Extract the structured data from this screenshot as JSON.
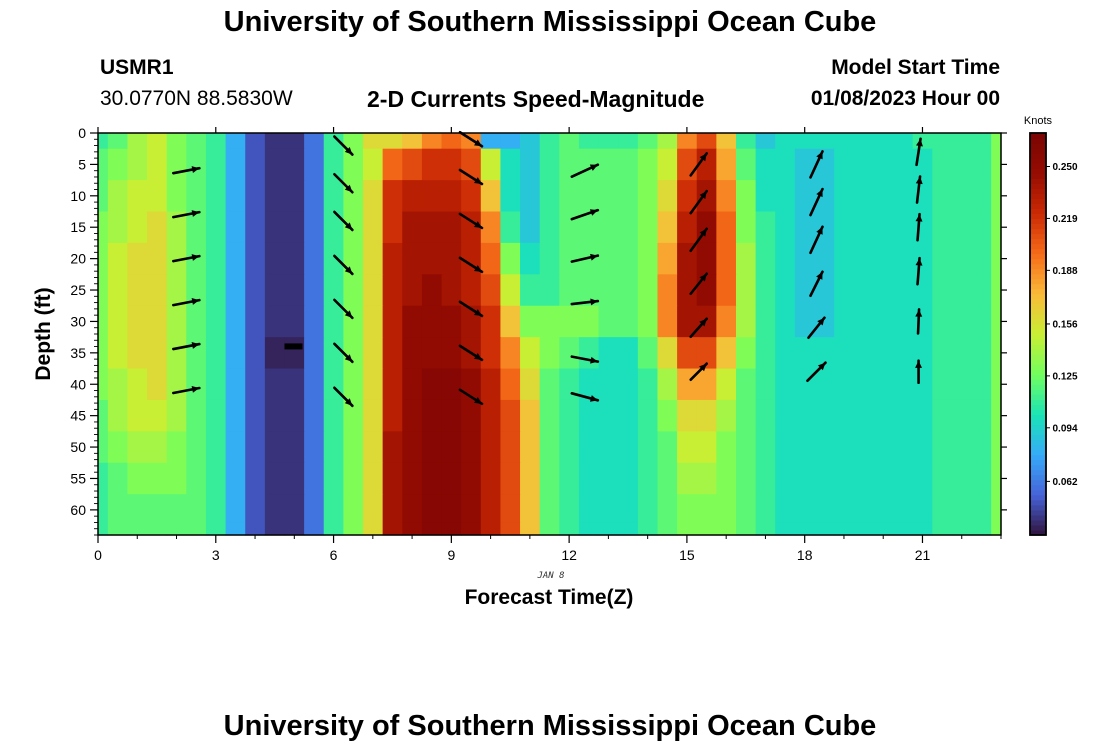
{
  "header": {
    "title": "University of Southern Mississippi Ocean Cube",
    "station_id": "USMR1",
    "coordinates": "30.0770N  88.5830W",
    "subtitle": "2-D Currents Speed-Magnitude",
    "model_start_label": "Model Start Time",
    "model_start_value": "01/08/2023 Hour 00",
    "footer_title": "University of Southern Mississippi Ocean Cube"
  },
  "chart_data": {
    "type": "heatmap",
    "title": "2-D Currents Speed-Magnitude",
    "xlabel": "Forecast Time(Z)",
    "ylabel": "Depth (ft)",
    "date_label": "JAN 8",
    "xlim": [
      0,
      23
    ],
    "ylim": [
      0,
      64
    ],
    "y_inverted": true,
    "x_ticks": [
      0,
      3,
      6,
      9,
      12,
      15,
      18,
      21
    ],
    "y_ticks": [
      0,
      5,
      10,
      15,
      20,
      25,
      30,
      35,
      40,
      45,
      50,
      55,
      60
    ],
    "colorbar": {
      "title": "Knots",
      "range": [
        0.03,
        0.27
      ],
      "ticks": [
        "0.250",
        "0.219",
        "0.188",
        "0.156",
        "0.125",
        "0.094",
        "0.062"
      ],
      "tick_values": [
        0.25,
        0.219,
        0.188,
        0.156,
        0.125,
        0.094,
        0.062
      ]
    },
    "hours": [
      0,
      0.5,
      1,
      1.5,
      2,
      2.5,
      3,
      3.5,
      4,
      4.5,
      5,
      5.5,
      6,
      6.5,
      7,
      7.5,
      8,
      8.5,
      9,
      9.5,
      10,
      10.5,
      11,
      11.5,
      12,
      12.5,
      13,
      13.5,
      14,
      14.5,
      15,
      15.5,
      16,
      16.5,
      17,
      17.5,
      18,
      18.5,
      19,
      19.5,
      20,
      20.5,
      21,
      21.5,
      22,
      22.5,
      23
    ],
    "depths_ft": [
      0,
      5,
      10,
      15,
      20,
      25,
      30,
      35,
      40,
      45,
      50,
      55,
      60,
      64
    ],
    "speed_knots": [
      [
        0.11,
        0.12,
        0.14,
        0.15,
        0.13,
        0.12,
        0.11,
        0.08,
        0.05,
        0.04,
        0.04,
        0.06,
        0.11,
        0.13,
        0.16,
        0.16,
        0.17,
        0.19,
        0.2,
        0.19,
        0.08,
        0.08,
        0.09,
        0.11,
        0.12,
        0.11,
        0.11,
        0.11,
        0.12,
        0.14,
        0.19,
        0.21,
        0.17,
        0.11,
        0.09,
        0.1,
        0.1,
        0.1,
        0.1,
        0.1,
        0.1,
        0.1,
        0.11,
        0.11,
        0.11,
        0.11,
        0.13
      ],
      [
        0.12,
        0.13,
        0.14,
        0.15,
        0.13,
        0.12,
        0.11,
        0.08,
        0.05,
        0.04,
        0.04,
        0.06,
        0.11,
        0.13,
        0.15,
        0.2,
        0.21,
        0.22,
        0.22,
        0.21,
        0.15,
        0.1,
        0.09,
        0.11,
        0.12,
        0.12,
        0.12,
        0.12,
        0.13,
        0.15,
        0.21,
        0.23,
        0.18,
        0.12,
        0.1,
        0.1,
        0.09,
        0.09,
        0.1,
        0.1,
        0.1,
        0.1,
        0.1,
        0.11,
        0.11,
        0.11,
        0.13
      ],
      [
        0.12,
        0.14,
        0.15,
        0.15,
        0.13,
        0.12,
        0.11,
        0.08,
        0.05,
        0.04,
        0.04,
        0.06,
        0.11,
        0.13,
        0.16,
        0.22,
        0.23,
        0.23,
        0.23,
        0.22,
        0.17,
        0.1,
        0.09,
        0.11,
        0.12,
        0.12,
        0.12,
        0.12,
        0.13,
        0.16,
        0.22,
        0.24,
        0.19,
        0.13,
        0.1,
        0.1,
        0.09,
        0.09,
        0.1,
        0.1,
        0.1,
        0.1,
        0.1,
        0.11,
        0.11,
        0.11,
        0.13
      ],
      [
        0.13,
        0.14,
        0.15,
        0.16,
        0.14,
        0.12,
        0.11,
        0.08,
        0.05,
        0.04,
        0.04,
        0.06,
        0.11,
        0.13,
        0.16,
        0.22,
        0.24,
        0.24,
        0.24,
        0.23,
        0.19,
        0.11,
        0.09,
        0.11,
        0.12,
        0.12,
        0.12,
        0.12,
        0.13,
        0.17,
        0.23,
        0.25,
        0.2,
        0.13,
        0.11,
        0.1,
        0.09,
        0.09,
        0.1,
        0.1,
        0.1,
        0.1,
        0.1,
        0.11,
        0.11,
        0.11,
        0.13
      ],
      [
        0.13,
        0.15,
        0.16,
        0.16,
        0.14,
        0.12,
        0.11,
        0.08,
        0.05,
        0.04,
        0.04,
        0.06,
        0.11,
        0.13,
        0.16,
        0.23,
        0.24,
        0.24,
        0.24,
        0.23,
        0.2,
        0.13,
        0.1,
        0.11,
        0.12,
        0.12,
        0.12,
        0.12,
        0.13,
        0.18,
        0.24,
        0.25,
        0.2,
        0.14,
        0.11,
        0.1,
        0.09,
        0.09,
        0.1,
        0.1,
        0.1,
        0.1,
        0.1,
        0.11,
        0.11,
        0.11,
        0.13
      ],
      [
        0.13,
        0.15,
        0.16,
        0.16,
        0.14,
        0.12,
        0.11,
        0.08,
        0.05,
        0.04,
        0.04,
        0.06,
        0.11,
        0.13,
        0.16,
        0.23,
        0.24,
        0.25,
        0.24,
        0.23,
        0.21,
        0.15,
        0.11,
        0.11,
        0.12,
        0.12,
        0.12,
        0.12,
        0.13,
        0.19,
        0.24,
        0.25,
        0.2,
        0.14,
        0.11,
        0.1,
        0.09,
        0.09,
        0.1,
        0.1,
        0.1,
        0.1,
        0.1,
        0.11,
        0.11,
        0.11,
        0.13
      ],
      [
        0.13,
        0.15,
        0.16,
        0.16,
        0.14,
        0.12,
        0.11,
        0.08,
        0.05,
        0.04,
        0.04,
        0.06,
        0.11,
        0.13,
        0.16,
        0.23,
        0.25,
        0.25,
        0.25,
        0.24,
        0.22,
        0.17,
        0.13,
        0.13,
        0.13,
        0.13,
        0.12,
        0.12,
        0.13,
        0.19,
        0.24,
        0.24,
        0.19,
        0.14,
        0.11,
        0.1,
        0.09,
        0.09,
        0.1,
        0.1,
        0.1,
        0.1,
        0.1,
        0.11,
        0.11,
        0.11,
        0.13
      ],
      [
        0.13,
        0.15,
        0.16,
        0.16,
        0.14,
        0.12,
        0.11,
        0.08,
        0.05,
        0.035,
        0.035,
        0.06,
        0.11,
        0.13,
        0.16,
        0.23,
        0.25,
        0.25,
        0.25,
        0.24,
        0.22,
        0.19,
        0.15,
        0.13,
        0.12,
        0.11,
        0.1,
        0.1,
        0.12,
        0.16,
        0.21,
        0.21,
        0.17,
        0.13,
        0.11,
        0.1,
        0.1,
        0.1,
        0.1,
        0.1,
        0.1,
        0.1,
        0.1,
        0.11,
        0.11,
        0.11,
        0.13
      ],
      [
        0.13,
        0.14,
        0.15,
        0.16,
        0.14,
        0.12,
        0.11,
        0.08,
        0.05,
        0.04,
        0.04,
        0.06,
        0.11,
        0.13,
        0.16,
        0.23,
        0.25,
        0.26,
        0.26,
        0.25,
        0.23,
        0.2,
        0.16,
        0.12,
        0.11,
        0.1,
        0.1,
        0.1,
        0.11,
        0.14,
        0.18,
        0.18,
        0.15,
        0.12,
        0.11,
        0.1,
        0.1,
        0.1,
        0.1,
        0.1,
        0.1,
        0.1,
        0.1,
        0.11,
        0.11,
        0.11,
        0.13
      ],
      [
        0.12,
        0.14,
        0.15,
        0.15,
        0.14,
        0.12,
        0.11,
        0.08,
        0.05,
        0.04,
        0.04,
        0.06,
        0.11,
        0.13,
        0.16,
        0.23,
        0.25,
        0.26,
        0.26,
        0.25,
        0.23,
        0.21,
        0.17,
        0.12,
        0.11,
        0.1,
        0.1,
        0.1,
        0.11,
        0.13,
        0.16,
        0.16,
        0.14,
        0.12,
        0.11,
        0.1,
        0.1,
        0.1,
        0.1,
        0.1,
        0.1,
        0.1,
        0.1,
        0.11,
        0.11,
        0.11,
        0.13
      ],
      [
        0.12,
        0.13,
        0.14,
        0.14,
        0.13,
        0.12,
        0.11,
        0.08,
        0.05,
        0.04,
        0.04,
        0.06,
        0.11,
        0.13,
        0.16,
        0.24,
        0.25,
        0.26,
        0.26,
        0.25,
        0.23,
        0.21,
        0.17,
        0.12,
        0.11,
        0.1,
        0.1,
        0.1,
        0.11,
        0.12,
        0.15,
        0.15,
        0.13,
        0.12,
        0.11,
        0.1,
        0.1,
        0.1,
        0.1,
        0.1,
        0.1,
        0.1,
        0.1,
        0.11,
        0.11,
        0.11,
        0.13
      ],
      [
        0.11,
        0.12,
        0.13,
        0.13,
        0.13,
        0.12,
        0.11,
        0.08,
        0.05,
        0.04,
        0.04,
        0.06,
        0.11,
        0.13,
        0.16,
        0.24,
        0.25,
        0.26,
        0.26,
        0.25,
        0.23,
        0.21,
        0.17,
        0.12,
        0.11,
        0.1,
        0.1,
        0.1,
        0.11,
        0.12,
        0.14,
        0.14,
        0.13,
        0.12,
        0.11,
        0.1,
        0.1,
        0.1,
        0.1,
        0.1,
        0.1,
        0.1,
        0.1,
        0.11,
        0.11,
        0.11,
        0.13
      ],
      [
        0.11,
        0.12,
        0.12,
        0.12,
        0.12,
        0.12,
        0.11,
        0.08,
        0.05,
        0.04,
        0.04,
        0.06,
        0.11,
        0.13,
        0.16,
        0.24,
        0.25,
        0.26,
        0.26,
        0.25,
        0.23,
        0.21,
        0.17,
        0.12,
        0.11,
        0.1,
        0.1,
        0.1,
        0.11,
        0.12,
        0.13,
        0.13,
        0.13,
        0.12,
        0.11,
        0.1,
        0.1,
        0.1,
        0.1,
        0.1,
        0.1,
        0.1,
        0.1,
        0.11,
        0.11,
        0.11,
        0.13
      ],
      [
        0.11,
        0.12,
        0.12,
        0.12,
        0.12,
        0.12,
        0.11,
        0.08,
        0.05,
        0.04,
        0.04,
        0.06,
        0.11,
        0.13,
        0.16,
        0.24,
        0.25,
        0.26,
        0.26,
        0.25,
        0.23,
        0.21,
        0.17,
        0.12,
        0.11,
        0.1,
        0.1,
        0.1,
        0.11,
        0.12,
        0.13,
        0.13,
        0.13,
        0.12,
        0.11,
        0.1,
        0.1,
        0.1,
        0.1,
        0.1,
        0.1,
        0.1,
        0.1,
        0.11,
        0.11,
        0.11,
        0.13
      ]
    ],
    "current_vectors": [
      {
        "hour": 2.25,
        "depths": [
          6,
          13,
          20,
          27,
          34,
          41
        ],
        "dx": [
          26,
          26,
          26,
          26,
          26,
          26
        ],
        "dy": [
          -5,
          -5,
          -5,
          -5,
          -5,
          -5
        ]
      },
      {
        "hour": 6.25,
        "depths": [
          2,
          8,
          14,
          21,
          28,
          35,
          42
        ],
        "dx": [
          18,
          18,
          18,
          18,
          18,
          18,
          18
        ],
        "dy": [
          18,
          18,
          18,
          18,
          18,
          18,
          18
        ]
      },
      {
        "hour": 9.5,
        "depths": [
          1,
          7,
          14,
          21,
          28,
          35,
          42
        ],
        "dx": [
          22,
          22,
          22,
          22,
          22,
          22,
          22
        ],
        "dy": [
          14,
          14,
          14,
          14,
          14,
          14,
          14
        ]
      },
      {
        "hour": 12.4,
        "depths": [
          6,
          13,
          20,
          27,
          36,
          42
        ],
        "dx": [
          26,
          26,
          26,
          26,
          26,
          26
        ],
        "dy": [
          -12,
          -9,
          -6,
          -3,
          5,
          7
        ]
      },
      {
        "hour": 15.3,
        "depths": [
          5,
          11,
          17,
          24,
          31,
          38
        ],
        "dx": [
          16,
          16,
          16,
          16,
          16,
          16
        ],
        "dy": [
          -22,
          -22,
          -22,
          -20,
          -18,
          -16
        ]
      },
      {
        "hour": 18.3,
        "depths": [
          5,
          11,
          17,
          24,
          31,
          38
        ],
        "dx": [
          12,
          12,
          12,
          12,
          16,
          18
        ],
        "dy": [
          -26,
          -26,
          -26,
          -24,
          -20,
          -18
        ]
      },
      {
        "hour": 20.9,
        "depths": [
          3,
          9,
          15,
          22,
          30,
          38
        ],
        "dx": [
          4,
          3,
          2,
          2,
          1,
          0
        ],
        "dy": [
          -26,
          -26,
          -26,
          -26,
          -24,
          -22
        ]
      }
    ]
  }
}
